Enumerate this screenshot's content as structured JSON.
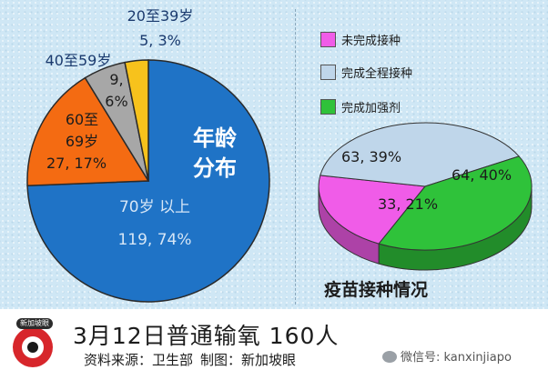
{
  "chart_data": [
    {
      "type": "pie",
      "center_label": [
        "年龄",
        "分布"
      ],
      "slices": [
        {
          "label_lines": [
            "70岁 以上",
            "119, 74%"
          ],
          "value": 119,
          "percent": 74,
          "color": "#1f73c6"
        },
        {
          "label_lines": [
            "60至",
            "69岁",
            "27, 17%"
          ],
          "value": 27,
          "percent": 17,
          "color": "#f46b12"
        },
        {
          "label_lines": [
            "40至59岁"
          ],
          "value_label_lines": [
            "9,",
            "6%"
          ],
          "value": 9,
          "percent": 6,
          "color": "#a7a7a7"
        },
        {
          "label_lines": [
            "20至39岁",
            "5, 3%"
          ],
          "value": 5,
          "percent": 3,
          "color": "#f7c21c"
        }
      ]
    },
    {
      "type": "pie",
      "title": "疫苗接种情况",
      "slices": [
        {
          "label": "未完成接种",
          "value_label": "33, 21%",
          "value": 33,
          "percent": 21,
          "color": "#f05ce8"
        },
        {
          "label": "完成全程接种",
          "value_label": "63, 39%",
          "value": 63,
          "percent": 39,
          "color": "#bfd6ea"
        },
        {
          "label": "完成加强剂",
          "value_label": "64, 40%",
          "value": 64,
          "percent": 40,
          "color": "#2fc23a"
        }
      ]
    }
  ],
  "footer": {
    "logo_text": "新加坡眼",
    "title": "3月12日普通输氧 160人",
    "source": "资料来源：卫生部",
    "credit": "制图：新加坡眼",
    "wechat": "微信号: kanxinjiapo"
  }
}
